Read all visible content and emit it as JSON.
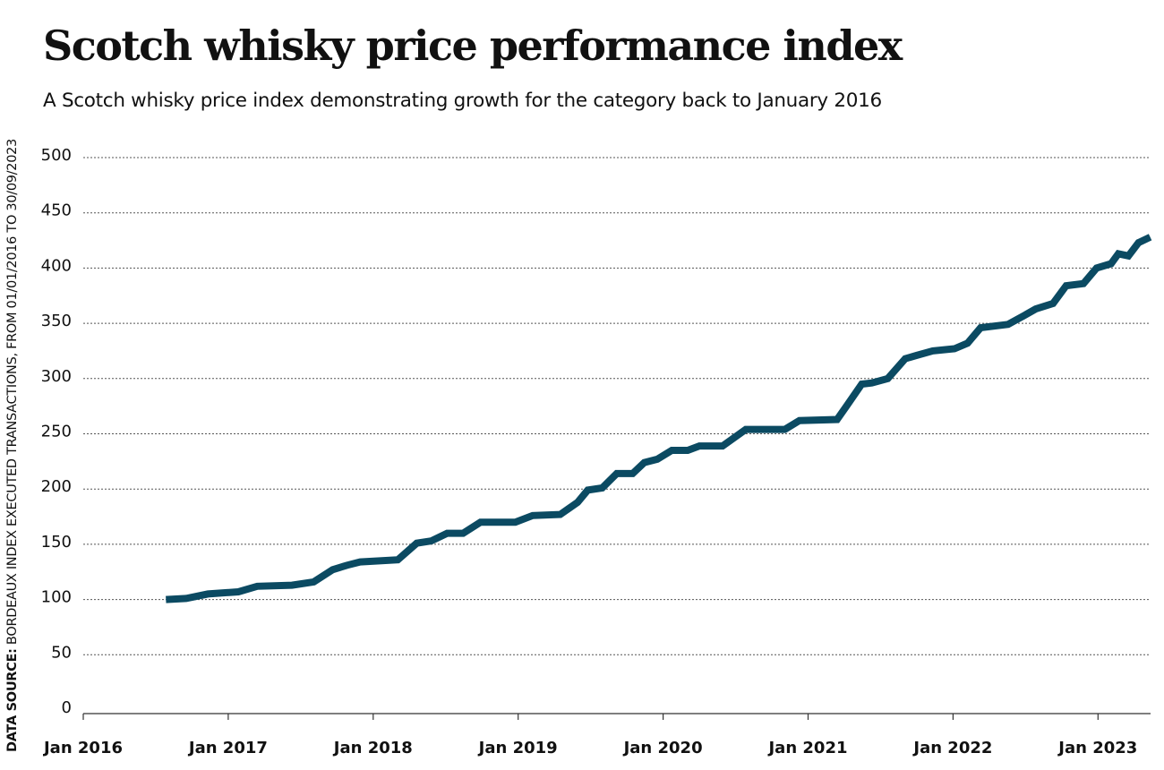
{
  "chart_data": {
    "type": "line",
    "title": "Scotch whisky price performance index",
    "subtitle": "A Scotch whisky price index demonstrating growth for the category back to January 2016",
    "source_label": "DATA SOURCE:",
    "source_text": "BORDEAUX INDEX EXECUTED TRANSACTIONS, FROM 01/01/2016 TO 30/09/2023",
    "xlabel": "",
    "ylabel": "",
    "ylim": [
      0,
      500
    ],
    "xlim": [
      2016,
      2023.37
    ],
    "yticks": [
      0,
      50,
      100,
      150,
      200,
      250,
      300,
      350,
      400,
      450,
      500
    ],
    "xticks": [
      {
        "value": 2016,
        "label": "Jan 2016"
      },
      {
        "value": 2017,
        "label": "Jan 2017"
      },
      {
        "value": 2018,
        "label": "Jan 2018"
      },
      {
        "value": 2019,
        "label": "Jan 2019"
      },
      {
        "value": 2020,
        "label": "Jan 2020"
      },
      {
        "value": 2021,
        "label": "Jan 2021"
      },
      {
        "value": 2022,
        "label": "Jan 2022"
      },
      {
        "value": 2023,
        "label": "Jan 2023"
      }
    ],
    "grid": "horizontal-dotted",
    "line_color": "#0b4a62",
    "series": [
      {
        "name": "Scotch whisky price index",
        "x": [
          2016.57,
          2016.71,
          2016.86,
          2017.07,
          2017.2,
          2017.44,
          2017.59,
          2017.72,
          2017.82,
          2017.91,
          2018.17,
          2018.3,
          2018.4,
          2018.51,
          2018.62,
          2018.74,
          2018.98,
          2019.1,
          2019.29,
          2019.41,
          2019.48,
          2019.58,
          2019.68,
          2019.79,
          2019.87,
          2019.96,
          2020.06,
          2020.17,
          2020.25,
          2020.41,
          2020.57,
          2020.84,
          2020.94,
          2021.2,
          2021.27,
          2021.37,
          2021.44,
          2021.55,
          2021.67,
          2021.75,
          2021.86,
          2022.01,
          2022.1,
          2022.19,
          2022.38,
          2022.49,
          2022.57,
          2022.69,
          2022.78,
          2022.9,
          2022.99,
          2023.09,
          2023.14,
          2023.21,
          2023.28,
          2023.36
        ],
        "values": [
          100,
          101,
          105,
          107,
          112,
          113,
          116,
          127,
          131,
          134,
          136,
          151,
          153,
          160,
          160,
          170,
          170,
          176,
          177,
          188,
          199,
          201,
          214,
          214,
          224,
          227,
          235,
          235,
          239,
          239,
          254,
          254,
          262,
          263,
          276,
          295,
          296,
          300,
          318,
          321,
          325,
          327,
          332,
          346,
          349,
          357,
          363,
          368,
          384,
          386,
          400,
          404,
          413,
          411,
          423,
          428
        ]
      }
    ]
  }
}
